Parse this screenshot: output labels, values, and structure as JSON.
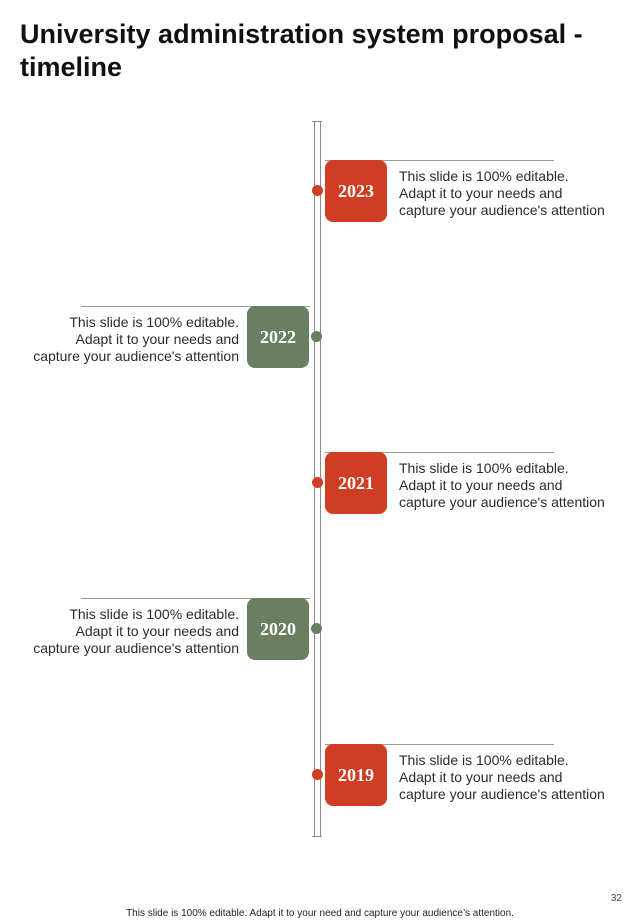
{
  "page": {
    "title": "University administration system proposal - timeline",
    "page_number": "32",
    "footer": "This slide is 100% editable. Adapt it to your need and capture your audience’s attention."
  },
  "colors": {
    "accent_red": "#cf3e22",
    "accent_green": "#6a7f62",
    "axis": "#8c8c8c"
  },
  "timeline": {
    "events": [
      {
        "year": "2023",
        "side": "right",
        "color": "#cf3e22",
        "lines": [
          "This slide is 100% editable.",
          "Adapt it to your needs and",
          "capture your audience's attention"
        ]
      },
      {
        "year": "2022",
        "side": "left",
        "color": "#6a7f62",
        "lines": [
          "This slide is 100% editable.",
          "Adapt it to your needs and",
          "capture your audience's attention"
        ]
      },
      {
        "year": "2021",
        "side": "right",
        "color": "#cf3e22",
        "lines": [
          "This slide is 100% editable.",
          "Adapt it to your needs and",
          "capture your audience's attention"
        ]
      },
      {
        "year": "2020",
        "side": "left",
        "color": "#6a7f62",
        "lines": [
          "This slide is 100% editable.",
          "Adapt it to your needs and",
          "capture your audience's attention"
        ]
      },
      {
        "year": "2019",
        "side": "right",
        "color": "#cf3e22",
        "lines": [
          "This slide is 100% editable.",
          "Adapt it to your needs and",
          "capture your audience's attention"
        ]
      }
    ]
  }
}
